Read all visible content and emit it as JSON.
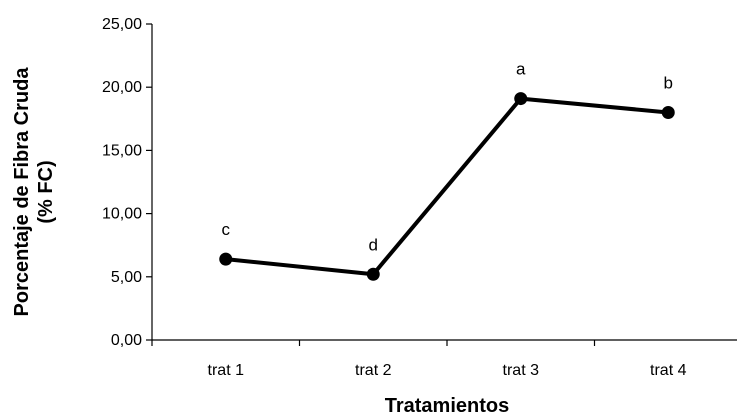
{
  "chart_data": {
    "type": "line",
    "categories": [
      "trat 1",
      "trat 2",
      "trat 3",
      "trat 4"
    ],
    "values": [
      6.4,
      5.2,
      19.1,
      18.0
    ],
    "point_labels": [
      "c",
      "d",
      "a",
      "b"
    ],
    "xlabel": "Tratamientos",
    "ylabel_lines": [
      "Porcentaje de Fibra Cruda",
      "(% FC)"
    ],
    "ylim": [
      0,
      25
    ],
    "yticks": [
      "0,00",
      "5,00",
      "10,00",
      "15,00",
      "20,00",
      "25,00"
    ],
    "grid": false,
    "line_color": "#000000",
    "marker": "filled-circle"
  }
}
